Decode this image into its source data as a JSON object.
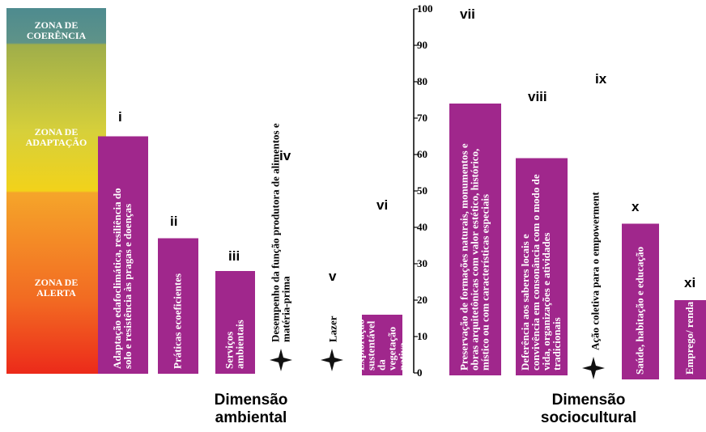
{
  "chart_data": {
    "type": "bar",
    "ylim": [
      0,
      100
    ],
    "yticks": [
      "0",
      "10",
      "20",
      "30",
      "40",
      "50",
      "60",
      "70",
      "80",
      "90",
      "100"
    ],
    "zones": [
      {
        "name": "ZONA DE\nCOERÊNCIA",
        "from": 90,
        "to": 100,
        "color": "#4a8a8f"
      },
      {
        "name": "ZONA DE\nADAPTAÇÃO",
        "from": 50,
        "to": 90,
        "color": "#c8c83c"
      },
      {
        "name": "ZONA DE\nALERTA",
        "from": 0,
        "to": 50,
        "color": "#f08a28"
      }
    ],
    "bar_color": "#a0278c",
    "bars": [
      {
        "numeral": "i",
        "value": 65,
        "label": "Adaptação edafoclimática, resiliência do solo e resistência às pragas e doenças",
        "group": "Dimensão ambiental"
      },
      {
        "numeral": "ii",
        "value": 37,
        "label": "Práticas ecoeficientes",
        "group": "Dimensão ambiental"
      },
      {
        "numeral": "iii",
        "value": 28,
        "label": "Serviços ambientais",
        "group": "Dimensão ambiental"
      },
      {
        "numeral": "iv",
        "value": 0,
        "label": "Desempenho da função produtora de alimentos e matéria-prima",
        "group": "Dimensão ambiental",
        "marker": "star"
      },
      {
        "numeral": "v",
        "value": 0,
        "label": "Lazer",
        "group": "Dimensão ambiental",
        "marker": "star"
      },
      {
        "numeral": "vi",
        "value": 16,
        "label": "Exploração sustentável da vegetação nativa",
        "group": "Dimensão ambiental"
      },
      {
        "numeral": "vii",
        "value": 74,
        "label": "Preservação de formações naturais, monumentos e obras arquitetônicas com valor estético, histórico, místico ou com características especiais",
        "group": "Dimensão sociocultural"
      },
      {
        "numeral": "viii",
        "value": 59,
        "label": "Deferência aos saberes locais e convivência em consonância com o modo de vida, organizações e atividades tradicionais",
        "group": "Dimensão sociocultural"
      },
      {
        "numeral": "ix",
        "value": 0,
        "label": "Ação coletiva para o empowerment",
        "group": "Dimensão sociocultural",
        "marker": "star"
      },
      {
        "numeral": "x",
        "value": 41,
        "label": "Saúde, habitação e educação",
        "group": "Dimensão sociocultural"
      },
      {
        "numeral": "xi",
        "value": 20,
        "label": "Emprego/ renda",
        "group": "Dimensão sociocultural"
      }
    ],
    "groups": [
      "Dimensão\nambiental",
      "Dimensão\nsociocultural"
    ]
  }
}
